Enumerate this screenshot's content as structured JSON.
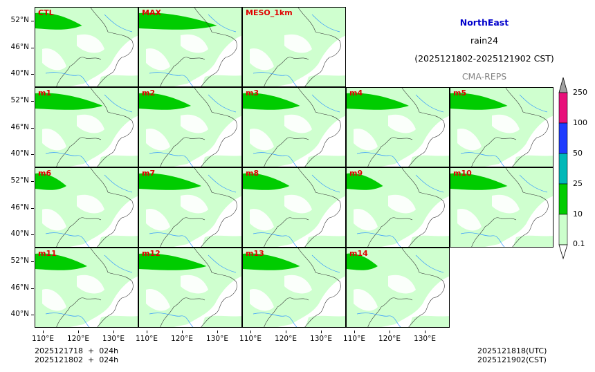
{
  "panels": [
    {
      "label": "CTL"
    },
    {
      "label": "MAX"
    },
    {
      "label": "MESO_1km"
    },
    {
      "label": "m1"
    },
    {
      "label": "m2"
    },
    {
      "label": "m3"
    },
    {
      "label": "m4"
    },
    {
      "label": "m5"
    },
    {
      "label": "m6"
    },
    {
      "label": "m7"
    },
    {
      "label": "m8"
    },
    {
      "label": "m9"
    },
    {
      "label": "m10"
    },
    {
      "label": "m11"
    },
    {
      "label": "m12"
    },
    {
      "label": "m13"
    },
    {
      "label": "m14"
    }
  ],
  "y_ticks": [
    "52°N",
    "46°N",
    "40°N"
  ],
  "x_ticks": [
    "110°E",
    "120°E",
    "130°E"
  ],
  "header": {
    "region": "NorthEast",
    "variable": "rain24",
    "period": "(2025121802-2025121902 CST)",
    "model": "CMA-REPS"
  },
  "colorbar": {
    "ticks": [
      "250",
      "100",
      "50",
      "25",
      "10",
      "0.1"
    ],
    "colors": [
      "#a0a0a0",
      "#e8107a",
      "#1e3cff",
      "#00b8b8",
      "#00cc00",
      "#ccffcc",
      "#ffffff"
    ]
  },
  "footer": {
    "init_line": "2025121718  +  024h",
    "cst_line": "2025121802  +  024h",
    "utc_valid": "2025121818(UTC)",
    "cst_valid": "2025121902(CST)"
  },
  "colors": {
    "light_rain": "#ccffcc",
    "moderate_rain": "#00cc00",
    "label_red": "#e00000",
    "title_blue": "#0000cc",
    "river_blue": "#3399ff"
  }
}
